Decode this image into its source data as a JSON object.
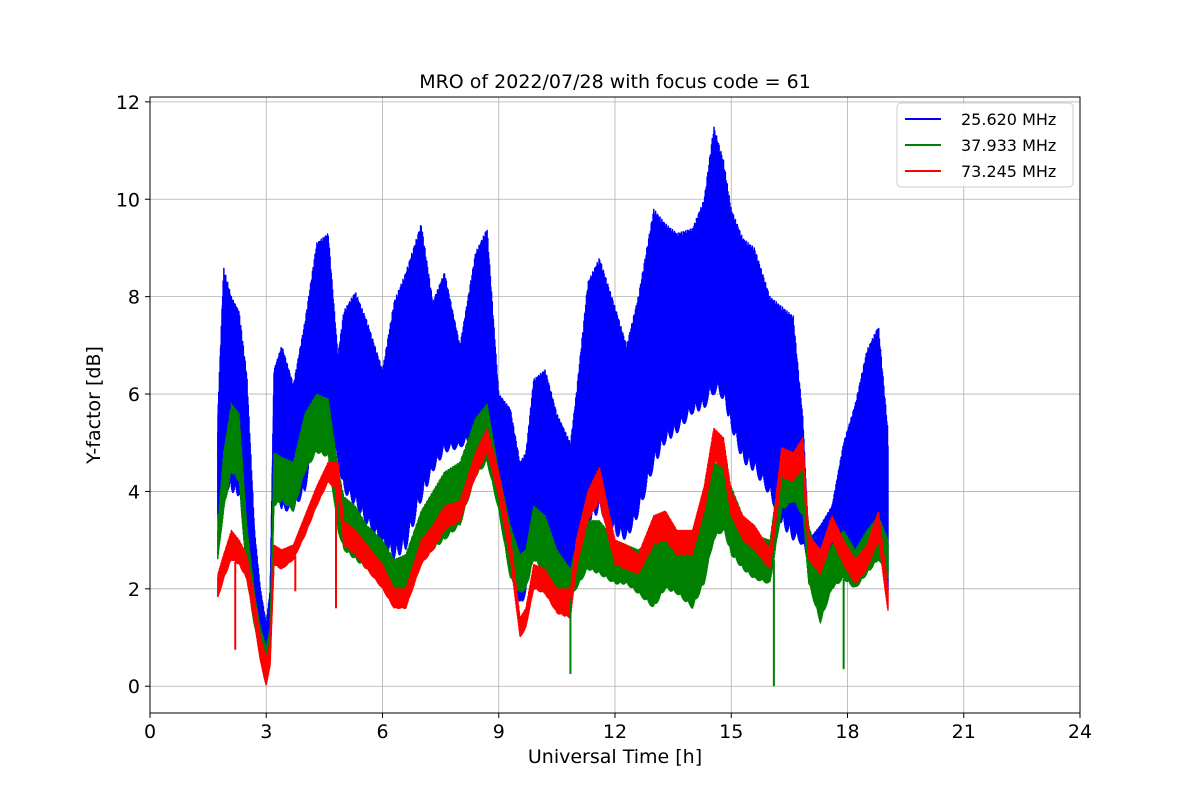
{
  "chart_data": {
    "type": "line",
    "title": "MRO of 2022/07/28 with focus code = 61",
    "xlabel": "Universal Time [h]",
    "ylabel": "Y-factor [dB]",
    "xlim": [
      0,
      24
    ],
    "ylim": [
      -0.55,
      12.1
    ],
    "xticks": [
      0,
      3,
      6,
      9,
      12,
      15,
      18,
      21,
      24
    ],
    "yticks": [
      0,
      2,
      4,
      6,
      8,
      10,
      12
    ],
    "grid": true,
    "legend_position": "top-right",
    "series": [
      {
        "name": "25.620 MHz",
        "color": "#0000ff",
        "x": [
          1.75,
          1.9,
          2.1,
          2.3,
          2.5,
          2.7,
          2.85,
          3.0,
          3.1,
          3.2,
          3.4,
          3.7,
          4.0,
          4.3,
          4.6,
          4.85,
          5.0,
          5.3,
          5.6,
          6.0,
          6.3,
          6.6,
          7.0,
          7.3,
          7.6,
          8.0,
          8.4,
          8.7,
          9.0,
          9.3,
          9.55,
          9.7,
          9.9,
          10.2,
          10.5,
          10.85,
          11.0,
          11.3,
          11.6,
          12.0,
          12.3,
          12.6,
          13.0,
          13.3,
          13.6,
          14.0,
          14.3,
          14.55,
          14.8,
          15.0,
          15.3,
          15.6,
          16.0,
          16.3,
          16.6,
          16.85,
          17.0,
          17.3,
          17.6,
          17.9,
          18.2,
          18.5,
          18.8,
          19.05
        ],
        "high": [
          5.6,
          8.6,
          8.0,
          7.7,
          6.4,
          3.2,
          2.0,
          1.3,
          2.0,
          6.5,
          7.0,
          6.2,
          7.5,
          9.1,
          9.3,
          6.8,
          7.7,
          8.1,
          7.5,
          6.5,
          7.9,
          8.5,
          9.5,
          7.9,
          8.5,
          7.0,
          8.9,
          9.4,
          6.0,
          5.7,
          4.6,
          4.8,
          6.3,
          6.5,
          5.6,
          5.0,
          6.0,
          8.3,
          8.8,
          7.8,
          7.0,
          8.0,
          9.8,
          9.5,
          9.3,
          9.4,
          10.0,
          11.5,
          10.8,
          9.8,
          9.2,
          9.0,
          8.0,
          7.8,
          7.6,
          5.5,
          3.0,
          3.3,
          3.7,
          5.0,
          5.8,
          6.9,
          7.4,
          5.2
        ],
        "low": [
          3.2,
          4.1,
          4.0,
          3.9,
          2.7,
          1.5,
          1.0,
          0.2,
          0.6,
          4.3,
          3.6,
          3.6,
          4.0,
          5.2,
          5.4,
          4.6,
          4.0,
          3.7,
          3.3,
          2.9,
          2.6,
          2.8,
          3.8,
          4.4,
          4.8,
          4.9,
          5.1,
          4.6,
          4.3,
          2.5,
          1.6,
          1.9,
          2.7,
          3.2,
          2.5,
          2.1,
          2.7,
          3.3,
          3.6,
          3.1,
          3.0,
          3.5,
          4.5,
          5.0,
          5.2,
          5.6,
          5.7,
          6.0,
          5.9,
          5.3,
          4.6,
          4.4,
          3.9,
          3.3,
          3.0,
          2.9,
          2.5,
          2.2,
          2.5,
          2.9,
          2.4,
          2.6,
          2.8,
          1.9
        ]
      },
      {
        "name": "37.933 MHz",
        "color": "#008000",
        "x": [
          1.75,
          1.9,
          2.1,
          2.3,
          2.5,
          2.7,
          2.85,
          3.0,
          3.1,
          3.2,
          3.4,
          3.7,
          4.0,
          4.3,
          4.6,
          4.85,
          5.0,
          5.3,
          5.6,
          6.0,
          6.3,
          6.6,
          7.0,
          7.3,
          7.6,
          8.0,
          8.4,
          8.7,
          9.0,
          9.3,
          9.55,
          9.7,
          9.9,
          10.2,
          10.5,
          10.85,
          11.0,
          11.3,
          11.6,
          12.0,
          12.3,
          12.6,
          13.0,
          13.3,
          13.6,
          14.0,
          14.3,
          14.55,
          14.8,
          15.0,
          15.3,
          15.6,
          16.0,
          16.3,
          16.6,
          16.85,
          17.0,
          17.3,
          17.6,
          17.9,
          18.2,
          18.5,
          18.8,
          19.05
        ],
        "high": [
          3.3,
          4.8,
          5.8,
          5.6,
          3.3,
          1.9,
          1.2,
          0.8,
          1.2,
          4.8,
          4.7,
          4.6,
          5.6,
          6.0,
          5.9,
          4.5,
          3.9,
          3.7,
          3.3,
          3.0,
          2.6,
          2.7,
          3.6,
          4.0,
          4.4,
          4.6,
          5.5,
          5.8,
          4.4,
          3.3,
          2.7,
          2.8,
          3.7,
          3.5,
          2.8,
          2.4,
          2.9,
          3.4,
          3.4,
          3.0,
          2.9,
          2.8,
          3.0,
          3.1,
          3.0,
          2.9,
          3.6,
          4.6,
          4.5,
          4.1,
          3.5,
          3.1,
          3.0,
          4.8,
          4.8,
          4.6,
          3.3,
          2.5,
          2.9,
          3.2,
          2.8,
          3.2,
          3.5,
          3.0
        ],
        "low": [
          2.6,
          3.6,
          4.4,
          4.2,
          2.2,
          1.2,
          0.7,
          0.4,
          0.7,
          3.7,
          3.8,
          3.6,
          4.4,
          4.8,
          4.7,
          3.2,
          2.8,
          2.6,
          2.4,
          2.1,
          1.8,
          1.8,
          2.5,
          2.8,
          3.0,
          3.3,
          4.3,
          4.6,
          3.6,
          2.2,
          1.9,
          2.0,
          2.6,
          2.3,
          2.0,
          1.8,
          2.0,
          2.4,
          2.3,
          2.1,
          2.1,
          1.9,
          1.6,
          2.0,
          1.9,
          1.6,
          2.1,
          3.0,
          3.2,
          2.7,
          2.4,
          2.2,
          2.1,
          3.6,
          3.8,
          3.5,
          2.1,
          1.3,
          2.0,
          2.2,
          2.0,
          2.3,
          2.6,
          2.2
        ]
      },
      {
        "name": "73.245 MHz",
        "color": "#ff0000",
        "x": [
          1.75,
          1.9,
          2.1,
          2.3,
          2.5,
          2.7,
          2.85,
          3.0,
          3.1,
          3.2,
          3.4,
          3.7,
          4.0,
          4.3,
          4.6,
          4.85,
          5.0,
          5.3,
          5.6,
          6.0,
          6.3,
          6.6,
          7.0,
          7.3,
          7.6,
          8.0,
          8.4,
          8.7,
          9.0,
          9.3,
          9.55,
          9.7,
          9.9,
          10.2,
          10.5,
          10.85,
          11.0,
          11.3,
          11.6,
          12.0,
          12.3,
          12.6,
          13.0,
          13.3,
          13.6,
          14.0,
          14.3,
          14.55,
          14.8,
          15.0,
          15.3,
          15.6,
          16.0,
          16.3,
          16.6,
          16.85,
          17.0,
          17.3,
          17.6,
          17.9,
          18.2,
          18.5,
          18.8,
          19.05
        ],
        "high": [
          2.3,
          2.7,
          3.2,
          3.0,
          2.7,
          1.8,
          1.0,
          0.6,
          0.9,
          2.9,
          2.8,
          2.9,
          3.5,
          4.1,
          4.6,
          4.6,
          3.4,
          3.2,
          2.9,
          2.5,
          2.0,
          2.0,
          3.0,
          3.3,
          3.7,
          3.8,
          4.8,
          5.3,
          4.4,
          3.1,
          1.4,
          1.6,
          2.5,
          2.4,
          2.0,
          2.0,
          3.0,
          4.0,
          4.5,
          3.0,
          2.9,
          2.7,
          3.5,
          3.6,
          3.2,
          3.2,
          4.1,
          5.3,
          5.1,
          4.0,
          3.5,
          3.3,
          2.8,
          4.9,
          4.8,
          5.1,
          3.1,
          2.8,
          3.5,
          3.0,
          2.6,
          2.9,
          3.6,
          2.0
        ],
        "low": [
          1.8,
          2.2,
          2.6,
          2.5,
          2.2,
          1.3,
          0.5,
          0.0,
          0.4,
          2.5,
          2.4,
          2.6,
          3.1,
          3.7,
          4.2,
          4.0,
          2.9,
          2.7,
          2.4,
          2.0,
          1.6,
          1.6,
          2.5,
          2.8,
          3.2,
          3.4,
          4.3,
          4.8,
          3.9,
          2.6,
          1.0,
          1.2,
          2.0,
          1.9,
          1.5,
          1.4,
          2.4,
          3.4,
          3.8,
          2.5,
          2.4,
          2.3,
          2.9,
          3.0,
          2.7,
          2.7,
          3.6,
          4.6,
          4.5,
          3.5,
          3.0,
          2.8,
          2.4,
          4.3,
          4.2,
          4.5,
          2.6,
          2.3,
          3.0,
          2.5,
          2.1,
          2.4,
          3.0,
          1.5
        ]
      }
    ],
    "spikes": [
      {
        "series": "73.245 MHz",
        "x": 2.2,
        "y": 0.75
      },
      {
        "series": "73.245 MHz",
        "x": 3.75,
        "y": 1.95
      },
      {
        "series": "73.245 MHz",
        "x": 4.8,
        "y": 1.6
      },
      {
        "series": "37.933 MHz",
        "x": 10.85,
        "y": 0.25
      },
      {
        "series": "37.933 MHz",
        "x": 16.1,
        "y": 0.0
      },
      {
        "series": "37.933 MHz",
        "x": 17.9,
        "y": 0.35
      }
    ]
  }
}
